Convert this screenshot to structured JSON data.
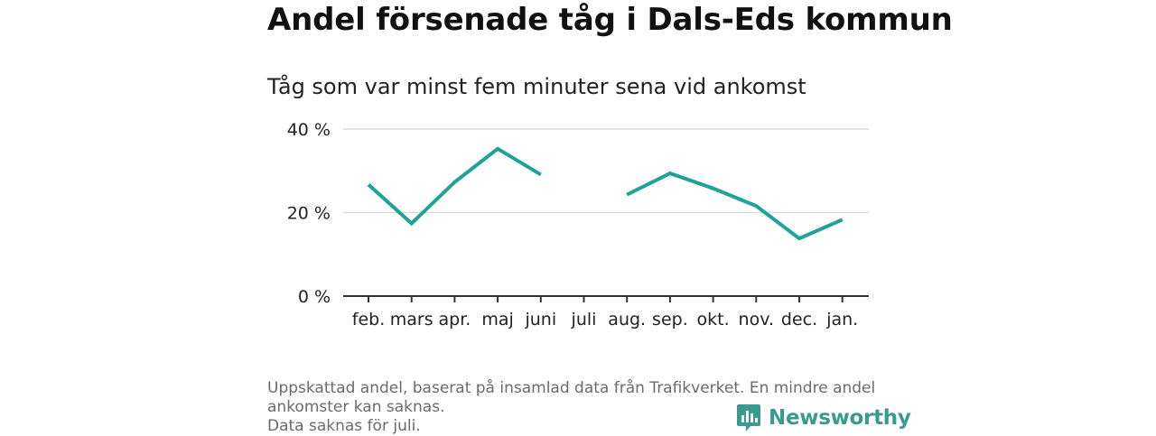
{
  "header": {
    "title": "Andel försenade tåg i Dals-Eds kommun",
    "subtitle": "Tåg som var minst fem minuter sena vid ankomst"
  },
  "chart_data": {
    "type": "line",
    "categories": [
      "feb.",
      "mars",
      "apr.",
      "maj",
      "juni",
      "juli",
      "aug.",
      "sep.",
      "okt.",
      "nov.",
      "dec.",
      "jan."
    ],
    "series": [
      {
        "values": [
          26.7,
          17.4,
          27.3,
          35.3,
          29.1,
          null,
          24.3,
          29.4,
          25.8,
          21.6,
          13.8,
          18.3
        ],
        "color": "#1fa297"
      }
    ],
    "ylim": [
      0,
      40
    ],
    "yticks": [
      0,
      20,
      40
    ],
    "ytick_labels": [
      "0 %",
      "20 %",
      "40 %"
    ],
    "grid": true,
    "xlabel": "",
    "ylabel": ""
  },
  "footer": {
    "note_line1": "Uppskattad andel, baserat på insamlad data från Trafikverket. En mindre andel",
    "note_line2": "ankomster kan saknas.",
    "note_line3": "Data saknas för juli."
  },
  "brand": {
    "name": "Newsworthy",
    "color": "#3a9a8f",
    "icon": "bar-chart-icon"
  }
}
